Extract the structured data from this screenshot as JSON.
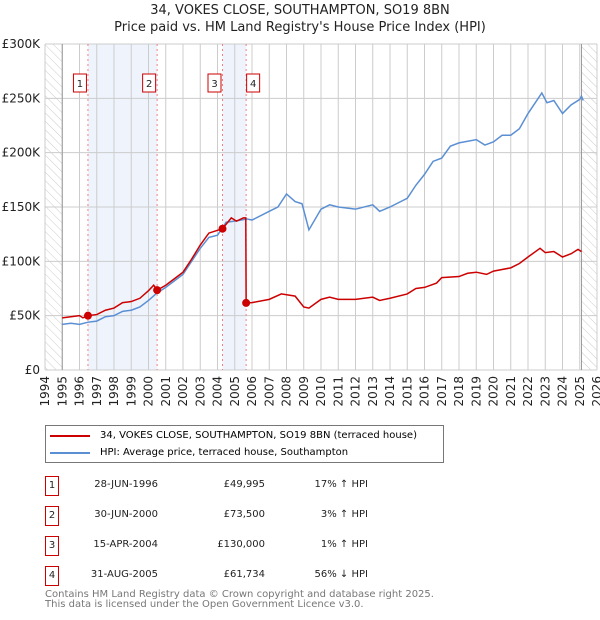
{
  "title": "34, VOKES CLOSE, SOUTHAMPTON, SO19 8BN",
  "subtitle": "Price paid vs. HM Land Registry's House Price Index (HPI)",
  "chart_data": {
    "type": "line",
    "title": "34, VOKES CLOSE, SOUTHAMPTON, SO19 8BN",
    "xlim": [
      1994,
      2026
    ],
    "ylim": [
      0,
      300
    ],
    "x_ticks": [
      "1994",
      "1995",
      "1996",
      "1997",
      "1998",
      "1999",
      "2000",
      "2001",
      "2002",
      "2003",
      "2004",
      "2005",
      "2006",
      "2007",
      "2008",
      "2009",
      "2010",
      "2011",
      "2012",
      "2013",
      "2014",
      "2015",
      "2016",
      "2017",
      "2018",
      "2019",
      "2020",
      "2021",
      "2022",
      "2023",
      "2024",
      "2025",
      "2026"
    ],
    "y_ticks": [
      {
        "v": 0,
        "label": "£0"
      },
      {
        "v": 50,
        "label": "£50K"
      },
      {
        "v": 100,
        "label": "£100K"
      },
      {
        "v": 150,
        "label": "£150K"
      },
      {
        "v": 200,
        "label": "£200K"
      },
      {
        "v": 250,
        "label": "£250K"
      },
      {
        "v": 300,
        "label": "£300K"
      }
    ],
    "data_start": 1995,
    "data_end": 2025.1,
    "series": [
      {
        "name": "34, VOKES CLOSE, SOUTHAMPTON, SO19 8BN (terraced house)",
        "color": "#cc0000",
        "points": [
          [
            1995,
            48
          ],
          [
            1995.5,
            49
          ],
          [
            1996,
            50
          ],
          [
            1996.2,
            48
          ],
          [
            1996.49,
            50
          ],
          [
            1997,
            51
          ],
          [
            1997.5,
            55
          ],
          [
            1998,
            57
          ],
          [
            1998.5,
            62
          ],
          [
            1999,
            63
          ],
          [
            1999.5,
            66
          ],
          [
            2000,
            73
          ],
          [
            2000.3,
            78
          ],
          [
            2000.5,
            73.5
          ],
          [
            2001,
            78
          ],
          [
            2001.5,
            84
          ],
          [
            2002,
            90
          ],
          [
            2002.5,
            102
          ],
          [
            2003,
            115
          ],
          [
            2003.5,
            126
          ],
          [
            2004.29,
            130
          ],
          [
            2004.8,
            140
          ],
          [
            2005.1,
            137
          ],
          [
            2005.5,
            140
          ],
          [
            2005.64,
            140
          ],
          [
            2005.66,
            61.7
          ],
          [
            2006,
            62
          ],
          [
            2007,
            65
          ],
          [
            2007.7,
            70
          ],
          [
            2008.5,
            68
          ],
          [
            2009,
            58
          ],
          [
            2009.3,
            57
          ],
          [
            2010,
            65
          ],
          [
            2010.5,
            67
          ],
          [
            2011,
            65
          ],
          [
            2012,
            65
          ],
          [
            2013,
            67
          ],
          [
            2013.4,
            64
          ],
          [
            2014,
            66
          ],
          [
            2015,
            70
          ],
          [
            2015.5,
            75
          ],
          [
            2016,
            76
          ],
          [
            2016.7,
            80
          ],
          [
            2017,
            85
          ],
          [
            2018,
            86
          ],
          [
            2018.5,
            89
          ],
          [
            2019,
            90
          ],
          [
            2019.6,
            88
          ],
          [
            2020,
            91
          ],
          [
            2021,
            94
          ],
          [
            2021.5,
            98
          ],
          [
            2022,
            104
          ],
          [
            2022.7,
            112
          ],
          [
            2023,
            108
          ],
          [
            2023.5,
            109
          ],
          [
            2024,
            104
          ],
          [
            2024.5,
            107
          ],
          [
            2024.9,
            111
          ],
          [
            2025.1,
            109
          ]
        ]
      },
      {
        "name": "HPI: Average price, terraced house, Southampton",
        "color": "#5b8fd4",
        "points": [
          [
            1995,
            42
          ],
          [
            1995.5,
            43
          ],
          [
            1996,
            42
          ],
          [
            1996.5,
            44
          ],
          [
            1997,
            45
          ],
          [
            1997.5,
            49
          ],
          [
            1998,
            50
          ],
          [
            1998.5,
            54
          ],
          [
            1999,
            55
          ],
          [
            1999.5,
            58
          ],
          [
            2000,
            64
          ],
          [
            2000.5,
            71
          ],
          [
            2001,
            76
          ],
          [
            2001.5,
            82
          ],
          [
            2002,
            88
          ],
          [
            2002.5,
            100
          ],
          [
            2003,
            112
          ],
          [
            2003.5,
            122
          ],
          [
            2004,
            124
          ],
          [
            2004.5,
            136
          ],
          [
            2005,
            137
          ],
          [
            2005.7,
            139
          ],
          [
            2006,
            138
          ],
          [
            2007,
            146
          ],
          [
            2007.5,
            150
          ],
          [
            2008,
            162
          ],
          [
            2008.5,
            155
          ],
          [
            2008.9,
            153
          ],
          [
            2009.3,
            129
          ],
          [
            2010,
            148
          ],
          [
            2010.5,
            152
          ],
          [
            2011,
            150
          ],
          [
            2012,
            148
          ],
          [
            2013,
            152
          ],
          [
            2013.4,
            146
          ],
          [
            2014,
            150
          ],
          [
            2015,
            158
          ],
          [
            2015.5,
            170
          ],
          [
            2016,
            180
          ],
          [
            2016.5,
            192
          ],
          [
            2017,
            195
          ],
          [
            2017.5,
            206
          ],
          [
            2018,
            209
          ],
          [
            2019,
            212
          ],
          [
            2019.5,
            207
          ],
          [
            2020,
            210
          ],
          [
            2020.5,
            216
          ],
          [
            2021,
            216
          ],
          [
            2021.5,
            222
          ],
          [
            2022,
            236
          ],
          [
            2022.8,
            255
          ],
          [
            2023.1,
            246
          ],
          [
            2023.5,
            248
          ],
          [
            2024,
            236
          ],
          [
            2024.5,
            244
          ],
          [
            2025,
            249
          ],
          [
            2025.1,
            252
          ],
          [
            2025.2,
            248
          ]
        ]
      }
    ],
    "sales": [
      {
        "n": "1",
        "x": 1996.49,
        "y": 49.995
      },
      {
        "n": "2",
        "x": 2000.5,
        "y": 73.5
      },
      {
        "n": "3",
        "x": 2004.29,
        "y": 130
      },
      {
        "n": "4",
        "x": 2005.66,
        "y": 61.734
      }
    ],
    "shaded": [
      [
        1996.49,
        2000.5
      ],
      [
        2004.29,
        2005.66
      ]
    ]
  },
  "legend": [
    {
      "label": "34, VOKES CLOSE, SOUTHAMPTON, SO19 8BN (terraced house)",
      "color": "#cc0000"
    },
    {
      "label": "HPI: Average price, terraced house, Southampton",
      "color": "#5b8fd4"
    }
  ],
  "table": [
    {
      "n": "1",
      "date": "28-JUN-1996",
      "price": "£49,995",
      "hpi": "17% ↑ HPI"
    },
    {
      "n": "2",
      "date": "30-JUN-2000",
      "price": "£73,500",
      "hpi": "3% ↑ HPI"
    },
    {
      "n": "3",
      "date": "15-APR-2004",
      "price": "£130,000",
      "hpi": "1% ↑ HPI"
    },
    {
      "n": "4",
      "date": "31-AUG-2005",
      "price": "£61,734",
      "hpi": "56% ↓ HPI"
    }
  ],
  "footer": [
    "Contains HM Land Registry data © Crown copyright and database right 2025.",
    "This data is licensed under the Open Government Licence v3.0."
  ]
}
